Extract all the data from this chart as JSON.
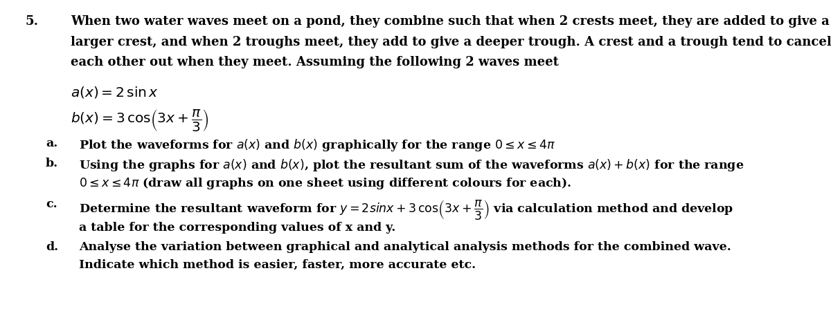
{
  "background_color": "#ffffff",
  "text_color": "#000000",
  "figsize": [
    12.0,
    4.5
  ],
  "dpi": 100,
  "number": "5.",
  "para_line1": "When two water waves meet on a pond, they combine such that when 2 crests meet, they are added to give a",
  "para_line2": "larger crest, and when 2 troughs meet, they add to give a deeper trough. A crest and a trough tend to cancel",
  "para_line3": "each other out when they meet. Assuming the following 2 waves meet",
  "eq1": "$a(x) = 2\\,\\sin x$",
  "eq2": "$b(x) = 3\\,\\cos\\!\\left(3x + \\dfrac{\\pi}{3}\\right)$",
  "item_a_label": "a.",
  "item_a_text": "Plot the waveforms for $a(x)$ and $b(x)$ graphically for the range $0 \\leq x \\leq 4\\pi$",
  "item_b_label": "b.",
  "item_b_text1": "Using the graphs for $a(x)$ and $b(x)$, plot the resultant sum of the waveforms $a(x) + b(x)$ for the range",
  "item_b_text2": "$0 \\leq x \\leq 4\\pi$ (draw all graphs on one sheet using different colours for each).",
  "item_c_label": "c.",
  "item_c_text1": "Determine the resultant waveform for $y = 2sinx + 3\\,\\cos\\!\\left(3x + \\dfrac{\\pi}{3}\\right)$ via calculation method and develop",
  "item_c_text2": "a table for the corresponding values of x and y.",
  "item_d_label": "d.",
  "item_d_text1": "Analyse the variation between graphical and analytical analysis methods for the combined wave.",
  "item_d_text2": "Indicate which method is easier, faster, more accurate etc.",
  "fs_main": 13.0,
  "fs_eq": 14.5,
  "fs_item": 12.5
}
